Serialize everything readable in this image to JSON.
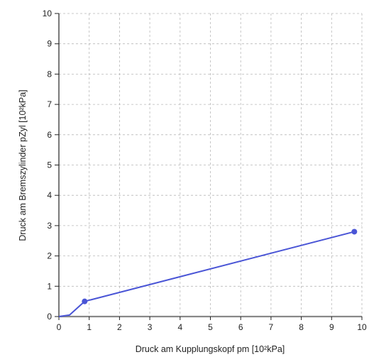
{
  "chart_data": {
    "type": "line",
    "title": "",
    "xlabel": "Druck am Kupplungskopf pm [10²kPa]",
    "ylabel": "Druck am Bremszylinder pZyl [10²kPa]",
    "xlim": [
      0,
      10
    ],
    "ylim": [
      0,
      10
    ],
    "xticks": [
      "0",
      "1",
      "2",
      "3",
      "4",
      "5",
      "6",
      "7",
      "8",
      "9",
      "10"
    ],
    "yticks": [
      "0",
      "1",
      "2",
      "3",
      "4",
      "5",
      "6",
      "7",
      "8",
      "9",
      "10"
    ],
    "grid": true,
    "series": [
      {
        "color": "#4a55d6",
        "x": [
          0,
          0.35,
          0.85,
          9.75
        ],
        "y": [
          0,
          0.05,
          0.5,
          2.8
        ]
      }
    ],
    "markers": [
      {
        "x": 0.85,
        "y": 0.5
      },
      {
        "x": 9.75,
        "y": 2.8
      }
    ],
    "baseline_color": "#888888"
  }
}
